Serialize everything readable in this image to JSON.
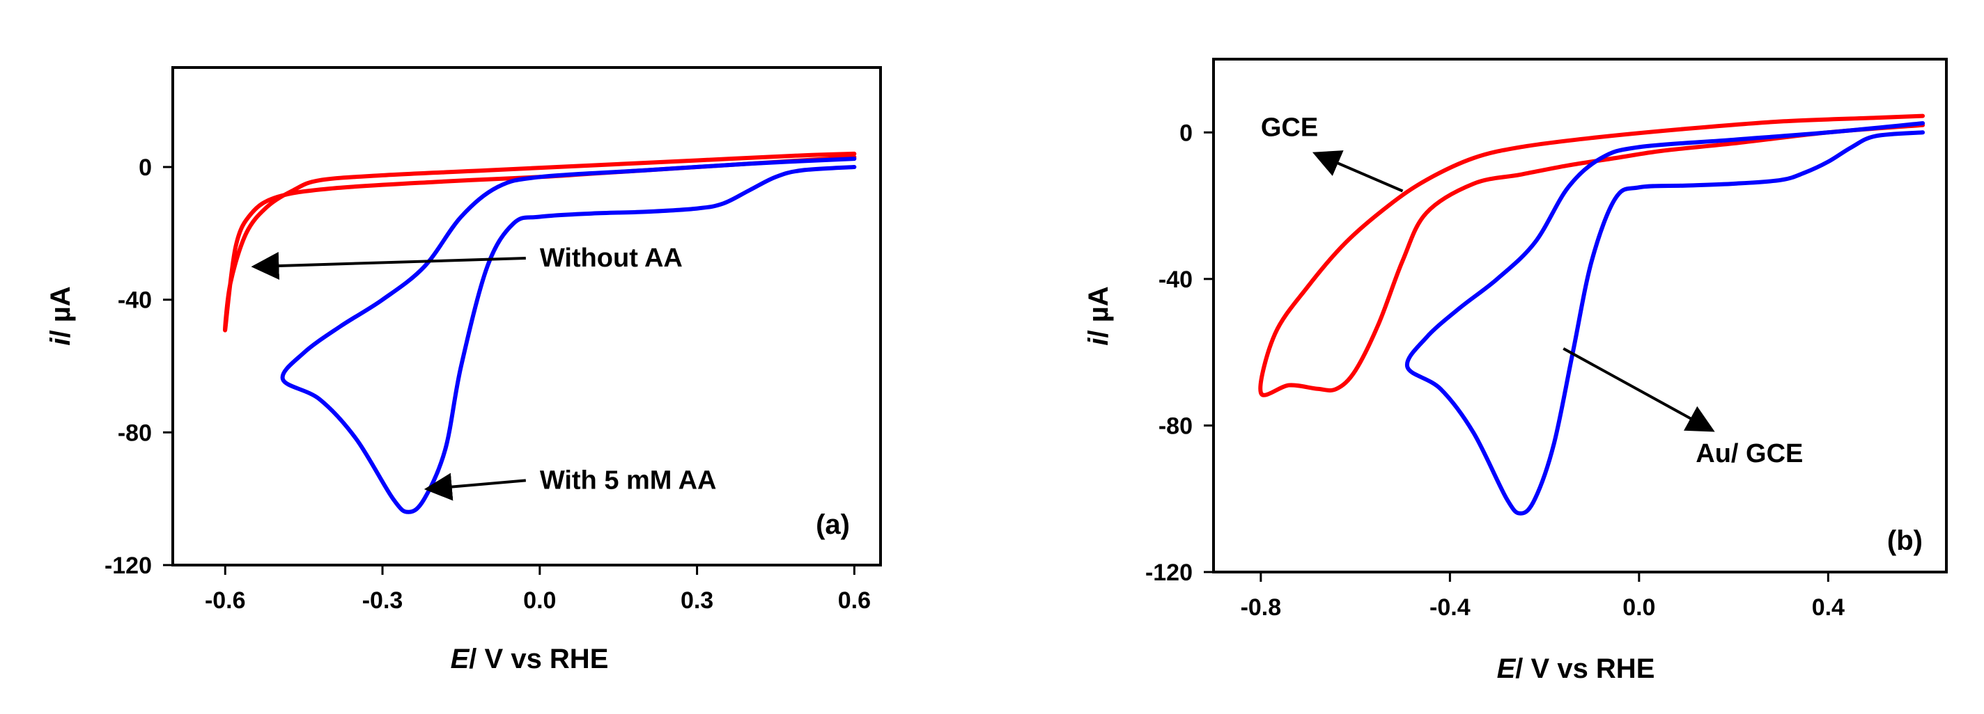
{
  "chart_data": [
    {
      "type": "line",
      "panel_label": "(a)",
      "xlabel_italic": "E",
      "xlabel_rest": "/ V vs RHE",
      "ylabel_italic": "i",
      "ylabel_rest": "/ µA",
      "xlim": [
        -0.7,
        0.65
      ],
      "ylim": [
        -120,
        30
      ],
      "xticks": [
        -0.6,
        -0.3,
        0.0,
        0.3,
        0.6
      ],
      "xtick_labels": [
        "-0.6",
        "-0.3",
        "0.0",
        "0.3",
        "0.6"
      ],
      "yticks": [
        0,
        -40,
        -80,
        -120
      ],
      "ytick_labels": [
        "0",
        "-40",
        "-80",
        "-120"
      ],
      "grid": false,
      "series": [
        {
          "color": "#ff0000",
          "x": [
            0.6,
            0.5,
            0.3,
            0.1,
            0.0,
            -0.2,
            -0.4,
            -0.5,
            -0.55,
            -0.58,
            -0.6,
            -0.59,
            -0.56,
            -0.52,
            -0.47,
            -0.42,
            -0.3,
            -0.1,
            0.1,
            0.3,
            0.5,
            0.6
          ],
          "y": [
            3,
            2,
            0,
            -2,
            -3,
            -4.5,
            -6.5,
            -9,
            -14,
            -24,
            -49,
            -35,
            -20,
            -12,
            -7,
            -4,
            -2.5,
            -1,
            0.5,
            2,
            3.5,
            4
          ]
        },
        {
          "color": "#0000ff",
          "x": [
            0.6,
            0.5,
            0.45,
            0.4,
            0.35,
            0.3,
            0.2,
            0.1,
            0.0,
            -0.05,
            -0.1,
            -0.15,
            -0.18,
            -0.22,
            -0.25,
            -0.28,
            -0.35,
            -0.42,
            -0.49,
            -0.45,
            -0.38,
            -0.3,
            -0.22,
            -0.15,
            -0.08,
            0.0,
            0.2,
            0.4,
            0.6
          ],
          "y": [
            0,
            -1,
            -3,
            -7,
            -11,
            -12.5,
            -13.5,
            -14,
            -15,
            -17,
            -30,
            -60,
            -85,
            -100,
            -104,
            -100,
            -82,
            -70,
            -64,
            -56,
            -48,
            -40,
            -30,
            -15,
            -6,
            -3,
            -1,
            1,
            2.5
          ]
        }
      ],
      "annotations": [
        {
          "text": "Without AA",
          "data_x": 0.0,
          "data_y": -30,
          "arrow_to": [
            -0.54,
            -30
          ]
        },
        {
          "text": "With 5 mM AA",
          "data_x": 0.0,
          "data_y": -97,
          "arrow_to": [
            -0.21,
            -97
          ]
        }
      ]
    },
    {
      "type": "line",
      "panel_label": "(b)",
      "xlabel_italic": "E",
      "xlabel_rest": "/ V vs RHE",
      "ylabel_italic": "i",
      "ylabel_rest": "/ µA",
      "xlim": [
        -0.9,
        0.65
      ],
      "ylim": [
        -120,
        20
      ],
      "xticks": [
        -0.8,
        -0.4,
        0.0,
        0.4
      ],
      "xtick_labels": [
        "-0.8",
        "-0.4",
        "0.0",
        "0.4"
      ],
      "yticks": [
        0,
        -40,
        -80,
        -120
      ],
      "ytick_labels": [
        "0",
        "-40",
        "-80",
        "-120"
      ],
      "grid": false,
      "series": [
        {
          "color": "#ff0000",
          "x": [
            0.6,
            0.4,
            0.2,
            0.05,
            -0.05,
            -0.15,
            -0.25,
            -0.35,
            -0.45,
            -0.5,
            -0.55,
            -0.6,
            -0.64,
            -0.68,
            -0.74,
            -0.8,
            -0.77,
            -0.7,
            -0.62,
            -0.53,
            -0.45,
            -0.35,
            -0.25,
            -0.1,
            0.1,
            0.3,
            0.5,
            0.6
          ],
          "y": [
            2,
            0,
            -3,
            -5,
            -7,
            -9,
            -11.5,
            -14,
            -22,
            -35,
            -52,
            -65,
            -70,
            -70,
            -69,
            -71,
            -55,
            -42,
            -30,
            -20,
            -13,
            -7,
            -4,
            -1.5,
            1,
            3,
            4,
            4.5
          ]
        },
        {
          "color": "#0000ff",
          "x": [
            0.6,
            0.5,
            0.45,
            0.4,
            0.35,
            0.3,
            0.2,
            0.1,
            0.0,
            -0.05,
            -0.1,
            -0.14,
            -0.18,
            -0.22,
            -0.25,
            -0.28,
            -0.35,
            -0.42,
            -0.49,
            -0.45,
            -0.38,
            -0.3,
            -0.22,
            -0.15,
            -0.08,
            0.0,
            0.2,
            0.4,
            0.6
          ],
          "y": [
            0,
            -1,
            -4,
            -8,
            -11,
            -13,
            -14,
            -14.5,
            -15,
            -18,
            -35,
            -60,
            -85,
            -100,
            -104,
            -100,
            -82,
            -70,
            -64,
            -56,
            -48,
            -40,
            -30,
            -15,
            -7,
            -4,
            -2,
            0,
            2.5
          ]
        }
      ],
      "annotations": [
        {
          "text": "GCE",
          "data_x": -0.8,
          "data_y": -1,
          "arrow_from": [
            -0.5,
            -16
          ],
          "arrow_to": [
            -0.68,
            -6
          ]
        },
        {
          "text": "Au/ GCE",
          "data_x": 0.12,
          "data_y": -90,
          "arrow_from": [
            -0.16,
            -59
          ],
          "arrow_to": [
            0.15,
            -81
          ]
        }
      ]
    }
  ]
}
